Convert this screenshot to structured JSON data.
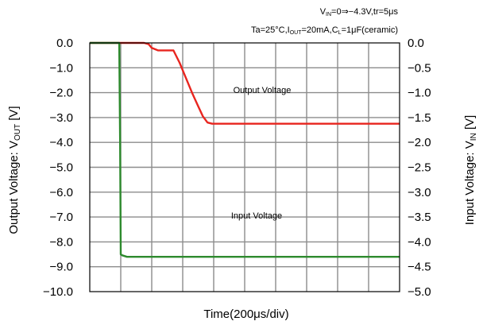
{
  "chart_data": {
    "type": "line",
    "title_line1": {
      "parts": [
        "V",
        "IN",
        "=0⇒−4.3V,tr=5μs"
      ]
    },
    "title_line2": {
      "parts": [
        "Ta=25°C,I",
        "OUT",
        "=20mA,C",
        "L",
        "=1μF(ceramic)"
      ]
    },
    "xlabel": "Time(200μs/div)",
    "ylabel_left": {
      "main": "Output Voltage: V",
      "sub": "OUT",
      "unit": " [V]"
    },
    "ylabel_right": {
      "main": "Input Voltage: V",
      "sub": "IN",
      "unit": " [V]"
    },
    "x_divisions": 10,
    "y_left": {
      "range": [
        -10.0,
        0.0
      ],
      "ticks": [
        "0.0",
        "−1.0",
        "−2.0",
        "−3.0",
        "−4.0",
        "−5.0",
        "−6.0",
        "−7.0",
        "−8.0",
        "−9.0",
        "−10.0"
      ]
    },
    "y_right": {
      "range": [
        -5.0,
        0.0
      ],
      "ticks": [
        "0.0",
        "−0.5",
        "−1.0",
        "−1.5",
        "−2.0",
        "−2.5",
        "−3.0",
        "−3.5",
        "−4.0",
        "−4.5",
        "−5.0"
      ]
    },
    "grid": true,
    "annotations": [
      {
        "text": "Output Voltage",
        "series": "output"
      },
      {
        "text": "Input Voltage",
        "series": "input"
      }
    ],
    "series": [
      {
        "id": "output",
        "color": "#e8251f",
        "axis": "left",
        "unit_x": "div",
        "points": [
          [
            0.0,
            0.0
          ],
          [
            1.75,
            0.0
          ],
          [
            1.9,
            -0.05
          ],
          [
            2.0,
            -0.2
          ],
          [
            2.2,
            -0.3
          ],
          [
            2.7,
            -0.3
          ],
          [
            2.9,
            -0.8
          ],
          [
            3.1,
            -1.4
          ],
          [
            3.3,
            -2.0
          ],
          [
            3.5,
            -2.55
          ],
          [
            3.65,
            -2.95
          ],
          [
            3.8,
            -3.2
          ],
          [
            3.95,
            -3.25
          ],
          [
            10.0,
            -3.25
          ]
        ]
      },
      {
        "id": "input",
        "color": "#2d8a2d",
        "axis": "right",
        "unit_x": "div",
        "points": [
          [
            0.0,
            0.0
          ],
          [
            0.95,
            0.0
          ],
          [
            0.98,
            -2.0
          ],
          [
            1.0,
            -4.25
          ],
          [
            1.05,
            -4.27
          ],
          [
            1.2,
            -4.3
          ],
          [
            10.0,
            -4.3
          ]
        ]
      }
    ]
  }
}
